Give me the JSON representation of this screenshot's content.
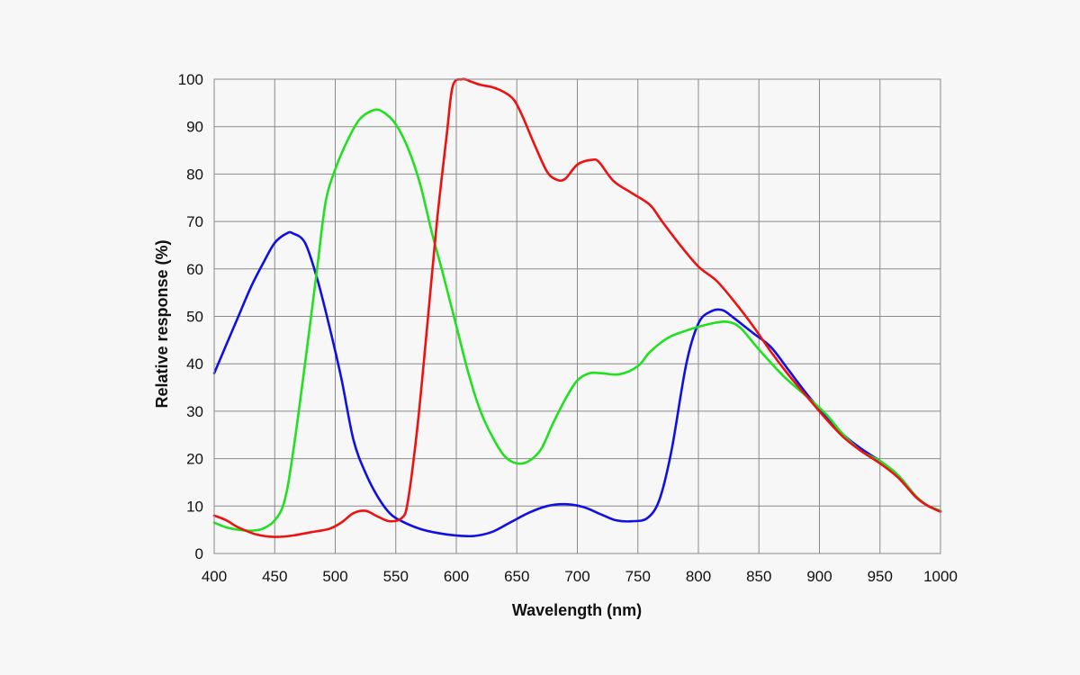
{
  "chart_data": {
    "type": "line",
    "title": "",
    "xlabel": "Wavelength (nm)",
    "ylabel": "Relative response (%)",
    "xlim": [
      400,
      1000
    ],
    "ylim": [
      0,
      100
    ],
    "xticks": [
      400,
      450,
      500,
      550,
      600,
      650,
      700,
      750,
      800,
      850,
      900,
      950,
      1000
    ],
    "yticks": [
      0,
      10,
      20,
      30,
      40,
      50,
      60,
      70,
      80,
      90,
      100
    ],
    "grid": true,
    "legend": "none",
    "background": "#f7f7f7",
    "series": [
      {
        "color": "#1010e0",
        "points": [
          [
            400,
            38
          ],
          [
            410,
            44
          ],
          [
            420,
            50
          ],
          [
            430,
            56
          ],
          [
            440,
            61
          ],
          [
            450,
            65.5
          ],
          [
            460,
            67.5
          ],
          [
            465,
            67.5
          ],
          [
            475,
            65.5
          ],
          [
            485,
            58
          ],
          [
            495,
            48
          ],
          [
            505,
            37
          ],
          [
            515,
            24
          ],
          [
            525,
            17
          ],
          [
            535,
            12
          ],
          [
            545,
            8.5
          ],
          [
            555,
            6.8
          ],
          [
            570,
            5.2
          ],
          [
            585,
            4.3
          ],
          [
            600,
            3.8
          ],
          [
            615,
            3.7
          ],
          [
            630,
            4.6
          ],
          [
            645,
            6.6
          ],
          [
            660,
            8.6
          ],
          [
            675,
            10
          ],
          [
            690,
            10.4
          ],
          [
            705,
            9.8
          ],
          [
            720,
            8.2
          ],
          [
            732,
            7
          ],
          [
            745,
            6.8
          ],
          [
            758,
            7.5
          ],
          [
            768,
            11.5
          ],
          [
            778,
            22
          ],
          [
            790,
            40
          ],
          [
            800,
            48.5
          ],
          [
            810,
            51
          ],
          [
            820,
            51.3
          ],
          [
            830,
            49.5
          ],
          [
            845,
            46.5
          ],
          [
            860,
            43.5
          ],
          [
            875,
            38.5
          ],
          [
            890,
            33.5
          ],
          [
            905,
            29
          ],
          [
            920,
            25
          ],
          [
            935,
            22
          ],
          [
            950,
            19.5
          ],
          [
            965,
            16.5
          ],
          [
            980,
            12
          ],
          [
            990,
            10
          ],
          [
            1000,
            9
          ]
        ]
      },
      {
        "color": "#20e020",
        "points": [
          [
            400,
            6.5
          ],
          [
            410,
            5.5
          ],
          [
            420,
            5
          ],
          [
            430,
            4.8
          ],
          [
            440,
            5.2
          ],
          [
            450,
            7
          ],
          [
            458,
            11
          ],
          [
            465,
            21
          ],
          [
            475,
            40
          ],
          [
            485,
            60
          ],
          [
            492,
            74
          ],
          [
            500,
            81
          ],
          [
            510,
            87
          ],
          [
            520,
            91.5
          ],
          [
            532,
            93.5
          ],
          [
            540,
            93
          ],
          [
            550,
            90.5
          ],
          [
            560,
            85.5
          ],
          [
            570,
            78
          ],
          [
            580,
            67.5
          ],
          [
            590,
            58
          ],
          [
            600,
            48
          ],
          [
            610,
            38
          ],
          [
            620,
            30
          ],
          [
            630,
            24.5
          ],
          [
            640,
            20.5
          ],
          [
            650,
            19
          ],
          [
            660,
            19.5
          ],
          [
            670,
            22
          ],
          [
            680,
            27.5
          ],
          [
            690,
            32.5
          ],
          [
            700,
            36.5
          ],
          [
            710,
            38
          ],
          [
            720,
            38
          ],
          [
            735,
            37.8
          ],
          [
            750,
            39.5
          ],
          [
            760,
            42.5
          ],
          [
            775,
            45.5
          ],
          [
            790,
            47
          ],
          [
            800,
            47.8
          ],
          [
            815,
            48.7
          ],
          [
            825,
            48.8
          ],
          [
            835,
            47.5
          ],
          [
            850,
            43
          ],
          [
            870,
            37.5
          ],
          [
            890,
            33
          ],
          [
            905,
            29.5
          ],
          [
            920,
            25
          ],
          [
            935,
            21.5
          ],
          [
            950,
            19.5
          ],
          [
            965,
            16.5
          ],
          [
            980,
            12
          ],
          [
            990,
            10
          ],
          [
            1000,
            9
          ]
        ]
      },
      {
        "color": "#ee1111",
        "points": [
          [
            400,
            8
          ],
          [
            410,
            7
          ],
          [
            420,
            5.5
          ],
          [
            435,
            4
          ],
          [
            450,
            3.5
          ],
          [
            465,
            3.8
          ],
          [
            480,
            4.5
          ],
          [
            495,
            5.2
          ],
          [
            505,
            6.5
          ],
          [
            515,
            8.5
          ],
          [
            525,
            9
          ],
          [
            535,
            7.8
          ],
          [
            545,
            6.8
          ],
          [
            555,
            7.5
          ],
          [
            560,
            11
          ],
          [
            568,
            27
          ],
          [
            576,
            48
          ],
          [
            584,
            70
          ],
          [
            592,
            88
          ],
          [
            597,
            98.5
          ],
          [
            605,
            100
          ],
          [
            612,
            99.5
          ],
          [
            620,
            98.8
          ],
          [
            630,
            98.3
          ],
          [
            640,
            97.2
          ],
          [
            648,
            95.5
          ],
          [
            655,
            92
          ],
          [
            665,
            86
          ],
          [
            675,
            80.5
          ],
          [
            683,
            78.8
          ],
          [
            690,
            79
          ],
          [
            700,
            82
          ],
          [
            712,
            83
          ],
          [
            718,
            82.5
          ],
          [
            730,
            78.5
          ],
          [
            745,
            76
          ],
          [
            760,
            73.5
          ],
          [
            770,
            70
          ],
          [
            785,
            65
          ],
          [
            800,
            60.5
          ],
          [
            815,
            57.5
          ],
          [
            830,
            53
          ],
          [
            845,
            48
          ],
          [
            860,
            42.5
          ],
          [
            875,
            37.5
          ],
          [
            890,
            33
          ],
          [
            905,
            28.5
          ],
          [
            920,
            24.5
          ],
          [
            935,
            21.5
          ],
          [
            950,
            19
          ],
          [
            965,
            16
          ],
          [
            980,
            11.8
          ],
          [
            990,
            10
          ],
          [
            1000,
            8.8
          ]
        ]
      }
    ]
  }
}
